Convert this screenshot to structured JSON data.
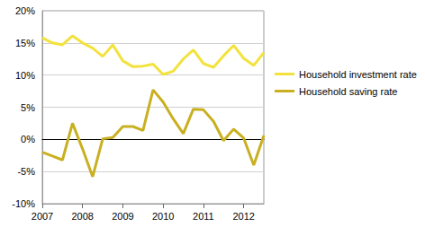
{
  "chart_data": {
    "type": "line",
    "categories": [
      "2007",
      null,
      null,
      null,
      "2008",
      null,
      null,
      null,
      "2009",
      null,
      null,
      null,
      "2010",
      null,
      null,
      null,
      "2011",
      null,
      null,
      null,
      "2012",
      null,
      null
    ],
    "series": [
      {
        "name": "Household investment rate",
        "color": "#f3e23c",
        "values": [
          15.8,
          15.0,
          14.7,
          16.1,
          15.0,
          14.2,
          12.9,
          14.7,
          12.2,
          11.3,
          11.4,
          11.7,
          10.1,
          10.6,
          12.5,
          13.9,
          11.8,
          11.2,
          13.0,
          14.6,
          12.6,
          11.5,
          13.5
        ]
      },
      {
        "name": "Household saving rate",
        "color": "#c9b021",
        "values": [
          -2.0,
          -2.6,
          -3.2,
          2.5,
          -1.5,
          -5.8,
          0.1,
          0.3,
          2.0,
          2.0,
          1.4,
          7.7,
          5.8,
          3.2,
          0.9,
          4.7,
          4.6,
          2.8,
          -0.2,
          1.6,
          0.2,
          -4.0,
          0.6
        ]
      }
    ],
    "ylim": [
      -10,
      20
    ],
    "yticks": [
      {
        "value": -10,
        "label": "-10%"
      },
      {
        "value": -5,
        "label": "-5%"
      },
      {
        "value": 0,
        "label": "0%"
      },
      {
        "value": 5,
        "label": "5%"
      },
      {
        "value": 10,
        "label": "10%"
      },
      {
        "value": 15,
        "label": "15%"
      },
      {
        "value": 20,
        "label": "20%"
      }
    ],
    "grid": true,
    "legend": "right"
  }
}
